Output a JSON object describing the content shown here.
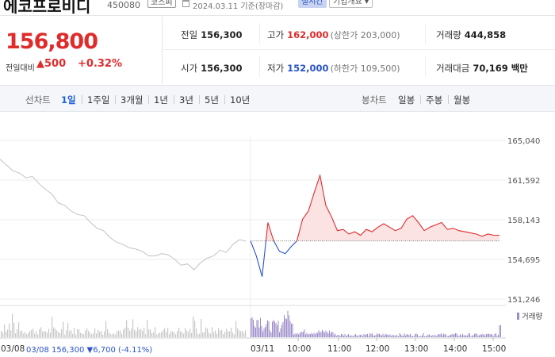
{
  "header": {
    "name": "에코프로비디",
    "code": "450080",
    "market": "코스피",
    "date": "2024.03.11 기준(장마감)",
    "live": "실시간",
    "overview": "기업개요"
  },
  "price": {
    "current": "156,800",
    "change_label": "전일대비",
    "change": "▲500",
    "change_pct": "+0.32%"
  },
  "stats": {
    "prev_close_label": "전일",
    "prev_close": "156,300",
    "high_label": "고가",
    "high": "162,000",
    "upper_limit": "(상한가 203,000)",
    "volume_label": "거래량",
    "volume": "444,858",
    "open_label": "시가",
    "open": "156,300",
    "low_label": "저가",
    "low": "152,000",
    "lower_limit": "(하한가 109,500)",
    "amount_label": "거래대금",
    "amount": "70,169 백만"
  },
  "tabs": {
    "line_title": "선차트",
    "line_tabs": [
      "1일",
      "1주일",
      "3개월",
      "1년",
      "3년",
      "5년",
      "10년"
    ],
    "candle_title": "봉차트",
    "candle_tabs": [
      "일봉",
      "주봉",
      "월봉"
    ]
  },
  "chart_data": {
    "type": "line",
    "y_ticks": [
      "165,040",
      "161,592",
      "158,143",
      "154,695",
      "151,246"
    ],
    "ylim": [
      151246,
      165040
    ],
    "reference_price": 156300,
    "x_ticks": [
      "03/08",
      "03/11",
      "10:00",
      "11:00",
      "12:00",
      "13:00",
      "14:00",
      "15:00"
    ],
    "volume_legend": "거래량",
    "prev_day_summary": "03/08  156,300 ▼6,700 (-4.11%)",
    "series": [
      {
        "values_prev_day": [
          163400,
          162900,
          162400,
          162200,
          161800,
          161900,
          161300,
          160800,
          160400,
          159600,
          159400,
          158900,
          158600,
          158500,
          157900,
          157400,
          157200,
          156600,
          156200,
          156000,
          155700,
          155600,
          155400,
          155000,
          155000,
          155200,
          155100,
          154700,
          154200,
          154300,
          153800,
          154400,
          154800,
          155000,
          155500,
          155300,
          156000,
          156400,
          156300
        ],
        "values_today": [
          156300,
          155000,
          153200,
          157900,
          156300,
          155400,
          155200,
          155800,
          156300,
          158200,
          158900,
          160500,
          162000,
          159400,
          158400,
          157200,
          157300,
          156900,
          157100,
          156800,
          157300,
          157100,
          157500,
          157800,
          157500,
          157200,
          157400,
          158200,
          158500,
          157900,
          157200,
          157500,
          157700,
          157900,
          157300,
          157400,
          157200,
          157100,
          157000,
          156900,
          156700,
          156900,
          156800,
          156800
        ]
      }
    ]
  }
}
